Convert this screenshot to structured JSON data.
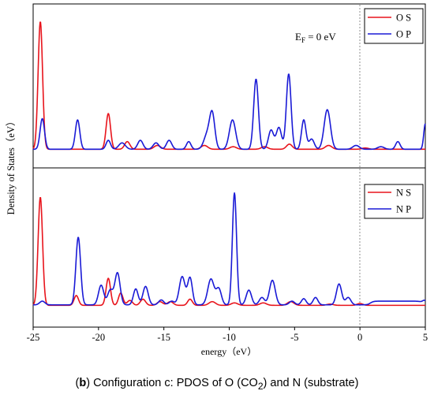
{
  "caption": {
    "label": "b",
    "text_before": "Configuration c: PDOS of O (CO",
    "subscript": "2",
    "text_after": ") and N (substrate)"
  },
  "chart_data": {
    "type": "line",
    "xlabel": "energy（eV）",
    "ylabel": "Density of States（eV）",
    "xlim": [
      -25,
      5
    ],
    "x_ticks": [
      "-25",
      "-20",
      "-15",
      "-10",
      "-5",
      "0",
      "5"
    ],
    "fermi_level": 0,
    "colors": {
      "s": "#e8141c",
      "p": "#1a1ad6"
    },
    "panels": [
      {
        "annotation": {
          "main": "E",
          "sub": "F",
          "rest": " = 0 eV"
        },
        "ylim": [
          0,
          1.0
        ],
        "series": [
          {
            "name": "O S",
            "color": "#e8141c",
            "baseline": 0.004,
            "peaks": [
              [
                -24.45,
                1.0,
                0.17
              ],
              [
                -19.25,
                0.28,
                0.17
              ],
              [
                -17.8,
                0.06,
                0.2
              ],
              [
                -15.5,
                0.03,
                0.25
              ],
              [
                -11.9,
                0.03,
                0.25
              ],
              [
                -9.7,
                0.02,
                0.25
              ],
              [
                -7.3,
                0.02,
                0.25
              ],
              [
                -5.4,
                0.04,
                0.22
              ],
              [
                -2.4,
                0.03,
                0.25
              ],
              [
                0.4,
                0.01,
                0.25
              ]
            ]
          },
          {
            "name": "O P",
            "color": "#1a1ad6",
            "baseline": 0.004,
            "peaks": [
              [
                -24.3,
                0.24,
                0.17
              ],
              [
                -21.6,
                0.23,
                0.17
              ],
              [
                -19.25,
                0.07,
                0.17
              ],
              [
                -18.2,
                0.05,
                0.25
              ],
              [
                -16.8,
                0.07,
                0.2
              ],
              [
                -15.6,
                0.05,
                0.22
              ],
              [
                -14.6,
                0.07,
                0.2
              ],
              [
                -13.1,
                0.06,
                0.17
              ],
              [
                -11.7,
                0.11,
                0.25
              ],
              [
                -11.3,
                0.27,
                0.2
              ],
              [
                -9.75,
                0.23,
                0.24
              ],
              [
                -7.95,
                0.55,
                0.18
              ],
              [
                -6.8,
                0.15,
                0.2
              ],
              [
                -6.2,
                0.17,
                0.2
              ],
              [
                -5.45,
                0.59,
                0.18
              ],
              [
                -4.3,
                0.23,
                0.17
              ],
              [
                -3.7,
                0.08,
                0.2
              ],
              [
                -2.5,
                0.31,
                0.24
              ],
              [
                -0.3,
                0.03,
                0.25
              ],
              [
                1.6,
                0.02,
                0.25
              ],
              [
                2.9,
                0.06,
                0.17
              ],
              [
                5.0,
                0.2,
                0.12
              ]
            ]
          }
        ]
      },
      {
        "ylim": [
          0,
          1.0
        ],
        "series": [
          {
            "name": "N S",
            "color": "#e8141c",
            "baseline": 0.004,
            "peaks": [
              [
                -24.45,
                0.88,
                0.17
              ],
              [
                -21.7,
                0.08,
                0.17
              ],
              [
                -19.25,
                0.22,
                0.17
              ],
              [
                -18.3,
                0.1,
                0.17
              ],
              [
                -17.6,
                0.04,
                0.2
              ],
              [
                -16.6,
                0.05,
                0.2
              ],
              [
                -15.3,
                0.03,
                0.22
              ],
              [
                -14.5,
                0.03,
                0.22
              ],
              [
                -13.0,
                0.05,
                0.18
              ],
              [
                -11.3,
                0.03,
                0.25
              ],
              [
                -9.6,
                0.02,
                0.25
              ],
              [
                -7.4,
                0.02,
                0.25
              ],
              [
                -5.3,
                0.03,
                0.25
              ],
              [
                -2.3,
                0.01,
                0.25
              ],
              [
                0.0,
                0.015,
                0.22
              ]
            ]
          },
          {
            "name": "N P",
            "color": "#1a1ad6",
            "baseline": 0.008,
            "peaks": [
              [
                -24.3,
                0.03,
                0.2
              ],
              [
                -21.55,
                0.55,
                0.18
              ],
              [
                -19.8,
                0.16,
                0.2
              ],
              [
                -19.1,
                0.12,
                0.2
              ],
              [
                -18.55,
                0.26,
                0.2
              ],
              [
                -17.15,
                0.13,
                0.18
              ],
              [
                -16.4,
                0.15,
                0.2
              ],
              [
                -15.2,
                0.04,
                0.2
              ],
              [
                -14.4,
                0.03,
                0.2
              ],
              [
                -13.6,
                0.23,
                0.22
              ],
              [
                -13.0,
                0.22,
                0.18
              ],
              [
                -11.4,
                0.21,
                0.24
              ],
              [
                -10.8,
                0.13,
                0.2
              ],
              [
                -9.6,
                0.91,
                0.16
              ],
              [
                -8.5,
                0.12,
                0.2
              ],
              [
                -7.5,
                0.06,
                0.2
              ],
              [
                -6.7,
                0.2,
                0.22
              ],
              [
                -5.2,
                0.03,
                0.2
              ],
              [
                -4.3,
                0.05,
                0.18
              ],
              [
                -3.4,
                0.06,
                0.18
              ],
              [
                -1.6,
                0.17,
                0.2
              ],
              [
                -0.9,
                0.06,
                0.2
              ],
              [
                4.95,
                0.03,
                0.15
              ]
            ],
            "plateaus": [
              [
                0.8,
                4.8,
                0.03
              ]
            ]
          }
        ]
      }
    ]
  }
}
